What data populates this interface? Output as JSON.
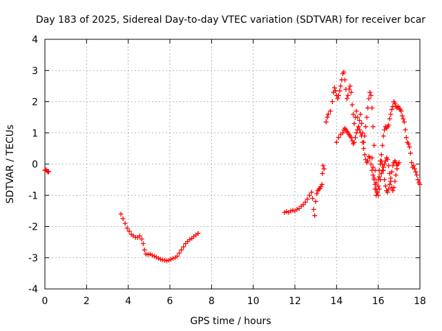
{
  "chart_data": {
    "type": "scatter",
    "title": "Day 183 of 2025, Sidereal Day-to-day VTEC variation (SDTVAR) for receiver bcar",
    "xlabel": "GPS time / hours",
    "ylabel": "SDTVAR / TECUs",
    "xlim": [
      0,
      18
    ],
    "ylim": [
      -4,
      4
    ],
    "xticks": [
      0,
      2,
      4,
      6,
      8,
      10,
      12,
      14,
      16,
      18
    ],
    "xtick_labels": [
      "0",
      "2",
      "4",
      "6",
      "8",
      "10",
      "12",
      "14",
      "16",
      "18"
    ],
    "yticks": [
      -4,
      -3,
      -2,
      -1,
      0,
      1,
      2,
      3,
      4
    ],
    "ytick_labels": [
      "-4",
      "-3",
      "-2",
      "-1",
      "0",
      "1",
      "2",
      "3",
      "4"
    ],
    "grid": true,
    "marker": "plus",
    "color": "#ff0000",
    "series": [
      {
        "name": "segment-1",
        "points": [
          [
            0.0,
            -0.2
          ],
          [
            0.05,
            -0.18
          ],
          [
            0.1,
            -0.22
          ],
          [
            0.15,
            -0.25
          ],
          [
            0.18,
            -0.24
          ]
        ]
      },
      {
        "name": "segment-2",
        "points": [
          [
            3.65,
            -1.6
          ],
          [
            3.75,
            -1.75
          ],
          [
            3.85,
            -1.9
          ],
          [
            3.95,
            -2.05
          ],
          [
            4.05,
            -2.15
          ],
          [
            4.15,
            -2.25
          ],
          [
            4.25,
            -2.3
          ],
          [
            4.35,
            -2.35
          ],
          [
            4.45,
            -2.35
          ],
          [
            4.55,
            -2.3
          ],
          [
            4.65,
            -2.4
          ],
          [
            4.72,
            -2.55
          ],
          [
            4.78,
            -2.75
          ],
          [
            4.85,
            -2.88
          ],
          [
            4.95,
            -2.9
          ],
          [
            5.05,
            -2.88
          ],
          [
            5.15,
            -2.92
          ],
          [
            5.25,
            -2.95
          ],
          [
            5.35,
            -2.98
          ],
          [
            5.45,
            -3.02
          ],
          [
            5.55,
            -3.05
          ],
          [
            5.65,
            -3.07
          ],
          [
            5.75,
            -3.08
          ],
          [
            5.85,
            -3.1
          ],
          [
            5.95,
            -3.08
          ],
          [
            6.05,
            -3.05
          ],
          [
            6.15,
            -3.02
          ],
          [
            6.25,
            -3.0
          ],
          [
            6.35,
            -2.95
          ],
          [
            6.45,
            -2.85
          ],
          [
            6.55,
            -2.75
          ],
          [
            6.65,
            -2.65
          ],
          [
            6.75,
            -2.55
          ],
          [
            6.85,
            -2.48
          ],
          [
            6.95,
            -2.42
          ],
          [
            7.05,
            -2.38
          ],
          [
            7.15,
            -2.32
          ],
          [
            7.25,
            -2.27
          ],
          [
            7.35,
            -2.22
          ]
        ]
      },
      {
        "name": "segment-3",
        "points": [
          [
            11.5,
            -1.55
          ],
          [
            11.6,
            -1.52
          ],
          [
            11.7,
            -1.55
          ],
          [
            11.8,
            -1.5
          ],
          [
            11.9,
            -1.48
          ],
          [
            12.0,
            -1.5
          ],
          [
            12.1,
            -1.45
          ],
          [
            12.2,
            -1.42
          ],
          [
            12.3,
            -1.35
          ],
          [
            12.4,
            -1.3
          ],
          [
            12.5,
            -1.22
          ],
          [
            12.6,
            -1.12
          ],
          [
            12.7,
            -1.0
          ],
          [
            12.8,
            -0.9
          ],
          [
            12.85,
            -1.1
          ],
          [
            12.9,
            -1.45
          ],
          [
            12.95,
            -1.65
          ],
          [
            13.0,
            -1.2
          ],
          [
            13.05,
            -0.95
          ],
          [
            13.1,
            -0.85
          ],
          [
            13.15,
            -0.8
          ],
          [
            13.2,
            -0.78
          ],
          [
            13.25,
            -0.72
          ],
          [
            13.3,
            -0.65
          ],
          [
            13.32,
            -0.3
          ],
          [
            13.35,
            -0.05
          ],
          [
            13.4,
            -0.15
          ],
          [
            13.5,
            1.35
          ],
          [
            13.55,
            1.5
          ],
          [
            13.6,
            1.6
          ],
          [
            13.7,
            1.7
          ],
          [
            13.8,
            2.0
          ],
          [
            13.85,
            2.3
          ],
          [
            13.9,
            2.45
          ],
          [
            13.95,
            2.35
          ],
          [
            14.0,
            2.2
          ],
          [
            14.05,
            2.1
          ],
          [
            14.1,
            2.2
          ],
          [
            14.15,
            2.35
          ],
          [
            14.2,
            2.5
          ],
          [
            14.25,
            2.7
          ],
          [
            14.3,
            2.9
          ],
          [
            14.35,
            2.95
          ],
          [
            14.4,
            2.7
          ],
          [
            14.45,
            2.4
          ],
          [
            14.5,
            2.1
          ],
          [
            14.55,
            2.2
          ],
          [
            14.6,
            2.4
          ],
          [
            14.65,
            2.5
          ],
          [
            14.7,
            2.3
          ],
          [
            14.75,
            1.9
          ],
          [
            14.8,
            1.6
          ],
          [
            14.85,
            1.3
          ],
          [
            14.9,
            1.5
          ],
          [
            14.95,
            1.7
          ],
          [
            15.0,
            1.5
          ],
          [
            15.05,
            1.2
          ],
          [
            15.1,
            1.4
          ],
          [
            15.15,
            1.6
          ],
          [
            15.2,
            1.3
          ],
          [
            15.25,
            1.0
          ],
          [
            15.3,
            0.7
          ],
          [
            15.35,
            0.9
          ],
          [
            15.4,
            1.2
          ],
          [
            15.45,
            1.5
          ],
          [
            15.5,
            1.8
          ],
          [
            15.55,
            2.1
          ],
          [
            15.6,
            2.3
          ],
          [
            15.65,
            2.2
          ],
          [
            15.7,
            1.8
          ],
          [
            15.75,
            1.2
          ],
          [
            15.8,
            0.6
          ],
          [
            15.85,
            -0.2
          ],
          [
            15.9,
            -0.6
          ],
          [
            15.95,
            -0.9
          ],
          [
            16.0,
            -0.7
          ],
          [
            16.05,
            -0.4
          ],
          [
            16.1,
            0.1
          ],
          [
            16.15,
            0.3
          ],
          [
            16.2,
            0.6
          ],
          [
            16.25,
            0.9
          ],
          [
            16.3,
            1.1
          ],
          [
            16.35,
            1.2
          ],
          [
            16.4,
            1.15
          ],
          [
            16.45,
            1.2
          ],
          [
            16.5,
            1.25
          ],
          [
            16.55,
            1.45
          ],
          [
            16.6,
            1.6
          ],
          [
            16.65,
            1.75
          ],
          [
            16.7,
            1.85
          ],
          [
            16.75,
            2.0
          ],
          [
            16.8,
            1.95
          ],
          [
            16.85,
            1.85
          ],
          [
            16.9,
            1.8
          ],
          [
            16.95,
            1.85
          ],
          [
            17.0,
            1.8
          ],
          [
            17.05,
            1.75
          ],
          [
            17.1,
            1.7
          ],
          [
            17.15,
            1.55
          ],
          [
            17.2,
            1.45
          ],
          [
            17.25,
            1.35
          ],
          [
            17.3,
            1.1
          ],
          [
            17.35,
            0.85
          ],
          [
            17.4,
            0.7
          ],
          [
            17.45,
            0.65
          ],
          [
            17.5,
            0.55
          ],
          [
            17.55,
            0.35
          ],
          [
            17.6,
            0.05
          ],
          [
            17.65,
            -0.1
          ],
          [
            17.7,
            -0.05
          ],
          [
            17.75,
            -0.15
          ],
          [
            17.8,
            -0.25
          ],
          [
            17.85,
            -0.35
          ],
          [
            17.9,
            -0.5
          ],
          [
            17.95,
            -0.6
          ],
          [
            18.0,
            -0.65
          ]
        ]
      },
      {
        "name": "segment-3-lower",
        "points": [
          [
            14.0,
            0.7
          ],
          [
            14.1,
            0.85
          ],
          [
            14.2,
            0.95
          ],
          [
            14.3,
            1.0
          ],
          [
            14.35,
            1.1
          ],
          [
            14.4,
            1.15
          ],
          [
            14.45,
            1.1
          ],
          [
            14.5,
            1.05
          ],
          [
            14.55,
            1.0
          ],
          [
            14.6,
            0.95
          ],
          [
            14.65,
            0.9
          ],
          [
            14.7,
            0.85
          ],
          [
            14.75,
            0.75
          ],
          [
            14.8,
            0.65
          ],
          [
            14.85,
            0.7
          ],
          [
            14.9,
            0.85
          ],
          [
            14.95,
            1.0
          ],
          [
            15.0,
            1.1
          ],
          [
            15.05,
            1.2
          ],
          [
            15.1,
            1.1
          ],
          [
            15.15,
            1.0
          ],
          [
            15.2,
            0.9
          ],
          [
            15.25,
            0.7
          ],
          [
            15.3,
            0.5
          ],
          [
            15.35,
            0.3
          ],
          [
            15.4,
            0.15
          ],
          [
            15.45,
            0.05
          ],
          [
            15.5,
            0.1
          ],
          [
            15.55,
            0.25
          ],
          [
            15.6,
            0.2
          ],
          [
            15.65,
            0.0
          ],
          [
            15.7,
            -0.2
          ],
          [
            15.75,
            -0.35
          ],
          [
            15.8,
            -0.5
          ],
          [
            15.85,
            -0.65
          ],
          [
            15.9,
            -0.8
          ],
          [
            15.95,
            -0.9
          ],
          [
            16.0,
            -1.0
          ],
          [
            16.05,
            -0.8
          ],
          [
            16.1,
            -0.5
          ],
          [
            16.15,
            -0.3
          ],
          [
            16.2,
            -0.2
          ],
          [
            16.25,
            -0.1
          ],
          [
            16.3,
            0.0
          ],
          [
            16.35,
            0.1
          ],
          [
            16.4,
            0.2
          ],
          [
            16.45,
            0.15
          ],
          [
            16.5,
            -0.05
          ],
          [
            16.55,
            -0.3
          ],
          [
            16.6,
            -0.55
          ],
          [
            16.65,
            -0.75
          ],
          [
            16.7,
            -0.85
          ],
          [
            16.75,
            -0.75
          ],
          [
            16.8,
            -0.55
          ],
          [
            16.85,
            -0.35
          ],
          [
            16.9,
            -0.15
          ],
          [
            16.95,
            0.0
          ],
          [
            17.0,
            0.05
          ]
        ]
      },
      {
        "name": "segment-3-dip",
        "points": [
          [
            15.7,
            0.2
          ],
          [
            15.75,
            -0.1
          ],
          [
            15.8,
            -0.45
          ],
          [
            15.85,
            -0.8
          ],
          [
            15.9,
            -1.0
          ],
          [
            15.95,
            -0.9
          ],
          [
            16.0,
            -0.5
          ],
          [
            16.05,
            -0.2
          ],
          [
            16.1,
            0.0
          ],
          [
            16.15,
            0.1
          ],
          [
            16.2,
            0.0
          ],
          [
            16.25,
            -0.2
          ],
          [
            16.3,
            -0.5
          ],
          [
            16.35,
            -0.7
          ],
          [
            16.4,
            -0.85
          ],
          [
            16.45,
            -0.9
          ],
          [
            16.5,
            -0.8
          ],
          [
            16.55,
            -0.65
          ],
          [
            16.6,
            -0.45
          ],
          [
            16.65,
            -0.25
          ],
          [
            16.7,
            -0.05
          ],
          [
            16.75,
            0.05
          ],
          [
            16.8,
            0.1
          ],
          [
            16.85,
            0.05
          ],
          [
            16.9,
            -0.05
          ]
        ]
      }
    ]
  }
}
